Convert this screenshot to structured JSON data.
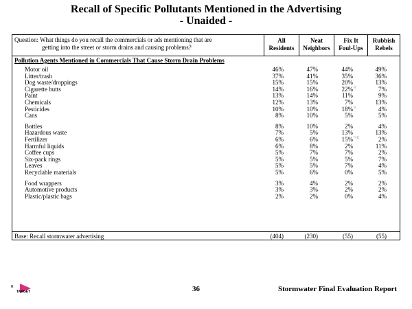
{
  "title": {
    "line1": "Recall of Specific Pollutants Mentioned in the Advertising",
    "line2": "- Unaided -"
  },
  "question": {
    "line1": "Question:  What things do you recall the commercials or ads mentioning that are",
    "line2": "getting into the street or storm drains and causing problems?"
  },
  "columns": [
    {
      "line1": "All",
      "line2": "Residents"
    },
    {
      "line1": "Neat",
      "line2": "Neighbors"
    },
    {
      "line1": "Fix It",
      "line2": "Foul-Ups"
    },
    {
      "line1": "Rubbish",
      "line2": "Rebels"
    }
  ],
  "section_heading": "Pollution Agents Mentioned in Commercials That Cause Storm Drain Problems",
  "rows": [
    {
      "label": "Motor oil",
      "values": [
        "46%",
        "47%",
        "44%",
        "49%"
      ],
      "sig": ""
    },
    {
      "label": "Litter/trash",
      "values": [
        "37%",
        "41%",
        "35%",
        "36%"
      ],
      "sig": ""
    },
    {
      "label": "Dog waste/droppings",
      "values": [
        "15%",
        "15%",
        "20%",
        "13%"
      ],
      "sig": ""
    },
    {
      "label": "Cigarette butts",
      "values": [
        "14%",
        "16%",
        "22%",
        "7%"
      ],
      "sig": "R"
    },
    {
      "label": "Paint",
      "values": [
        "13%",
        "14%",
        "11%",
        "9%"
      ],
      "sig": ""
    },
    {
      "label": "Chemicals",
      "values": [
        "12%",
        "13%",
        "7%",
        "13%"
      ],
      "sig": ""
    },
    {
      "label": "Pesticides",
      "values": [
        "10%",
        "10%",
        "18%",
        "4%"
      ],
      "sig": "R"
    },
    {
      "label": "Cans",
      "values": [
        "8%",
        "10%",
        "5%",
        "5%"
      ],
      "sig": ""
    },
    {
      "label": "Bottles",
      "values": [
        "8%",
        "10%",
        "2%",
        "4%"
      ],
      "sig": ""
    },
    {
      "label": "Hazardous waste",
      "values": [
        "7%",
        "5%",
        "13%",
        "13%"
      ],
      "sig": ""
    },
    {
      "label": "Fertilizer",
      "values": [
        "6%",
        "6%",
        "15%",
        "2%"
      ],
      "sig": "NR"
    },
    {
      "label": "Harmful liquids",
      "values": [
        "6%",
        "8%",
        "2%",
        "11%"
      ],
      "sig": ""
    },
    {
      "label": "Coffee cups",
      "values": [
        "5%",
        "7%",
        "7%",
        "2%"
      ],
      "sig": ""
    },
    {
      "label": "Six-pack rings",
      "values": [
        "5%",
        "5%",
        "5%",
        "7%"
      ],
      "sig": ""
    },
    {
      "label": "Leaves",
      "values": [
        "5%",
        "5%",
        "7%",
        "4%"
      ],
      "sig": ""
    },
    {
      "label": "Recyclable materials",
      "values": [
        "5%",
        "6%",
        "0%",
        "5%"
      ],
      "sig": ""
    },
    {
      "label": "Food wrappers",
      "values": [
        "3%",
        "4%",
        "2%",
        "2%"
      ],
      "sig": ""
    },
    {
      "label": "Automotive products",
      "values": [
        "3%",
        "3%",
        "2%",
        "2%"
      ],
      "sig": ""
    },
    {
      "label": "Plastic/plastic bags",
      "values": [
        "2%",
        "2%",
        "0%",
        "4%"
      ],
      "sig": ""
    }
  ],
  "base": {
    "label": "Base:  Recall stormwater advertising",
    "values": [
      "(404)",
      "(230)",
      "(55)",
      "(55)"
    ]
  },
  "footer": {
    "logo_text": "TARGET",
    "page_number": "36",
    "report_title": "Stormwater Final Evaluation Report"
  }
}
